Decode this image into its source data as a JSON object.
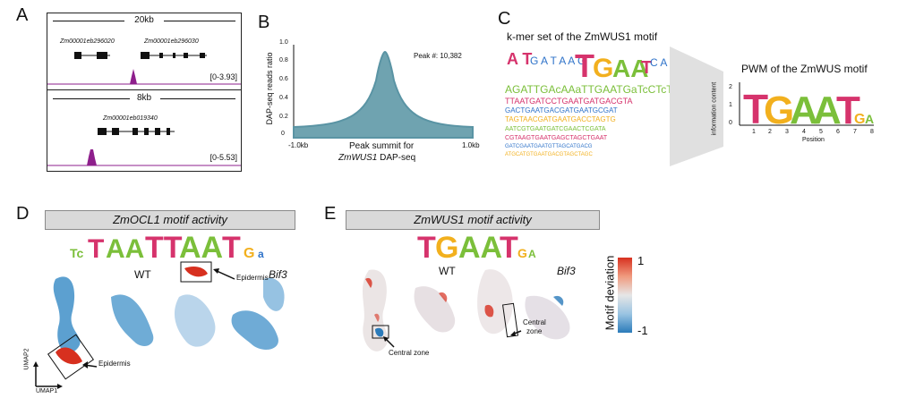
{
  "panels": {
    "A": {
      "label": "A",
      "track1": {
        "scale": "20kb",
        "gene_left": "Zm00001eb296020",
        "gene_right": "Zm00001eb296030",
        "range": "[0-3.93]"
      },
      "track2": {
        "scale": "8kb",
        "gene": "Zm00001eb019340",
        "range": "[0-5.53]"
      },
      "colors": {
        "signal": "#8e1f8c"
      }
    },
    "B": {
      "label": "B",
      "annotation": "Peak #: 10,382",
      "xlabel_line1": "Peak summit for",
      "xlabel_line2_italic": "ZmWUS1",
      "xlabel_line2_rest": " DAP-seq",
      "ylabel": "DAP-seq reads ratio",
      "x_left": "-1.0kb",
      "x_right": "1.0kb",
      "yticks": [
        "0",
        "0.2",
        "0.4",
        "0.6",
        "0.8",
        "1.0"
      ],
      "fill_color": "#6fa3b0"
    },
    "C": {
      "label": "C",
      "kmer_title": "k-mer set of the ZmWUS1 motif",
      "pwm_title": "PWM of the ZmWUS motif",
      "pwm_ylabel": "information content",
      "pwm_xlabel": "Position",
      "pwm_positions": [
        "1",
        "2",
        "3",
        "4",
        "5",
        "6",
        "7",
        "8"
      ],
      "pwm_yticks": [
        "2",
        "1",
        "0"
      ],
      "pwm_letters": [
        "T",
        "G",
        "A",
        "A",
        "T",
        "G",
        "A",
        "A"
      ]
    },
    "D": {
      "label": "D",
      "banner_italic": "ZmOCL1",
      "banner_rest": " motif activity",
      "logo_letters": [
        "T",
        "A",
        "A",
        "T",
        "T",
        "A",
        "A",
        "T",
        "G"
      ],
      "wt_label": "WT",
      "mut_label": "Bif3",
      "epidermis_label": "Epidermis",
      "axis_y": "UMAP2",
      "axis_x": "UMAP1"
    },
    "E": {
      "label": "E",
      "banner_italic": "ZmWUS1",
      "banner_rest": " motif activity",
      "logo_letters": [
        "T",
        "G",
        "A",
        "A",
        "T",
        "G",
        "A",
        "A"
      ],
      "wt_label": "WT",
      "mut_label": "Bif3",
      "central_zone_line1": "Central",
      "central_zone_line2": "zone",
      "central_zone_full": "Central zone",
      "legend_title": "Motif deviation",
      "legend_max": "1",
      "legend_min": "-1",
      "colors": {
        "high": "#d7301f",
        "mid": "#e6e6e6",
        "low": "#2b7bba"
      }
    }
  },
  "letter_colors": {
    "T": "#d6336c",
    "A": "#7bbf3a",
    "G": "#f2b01e",
    "C": "#2f73c9"
  }
}
